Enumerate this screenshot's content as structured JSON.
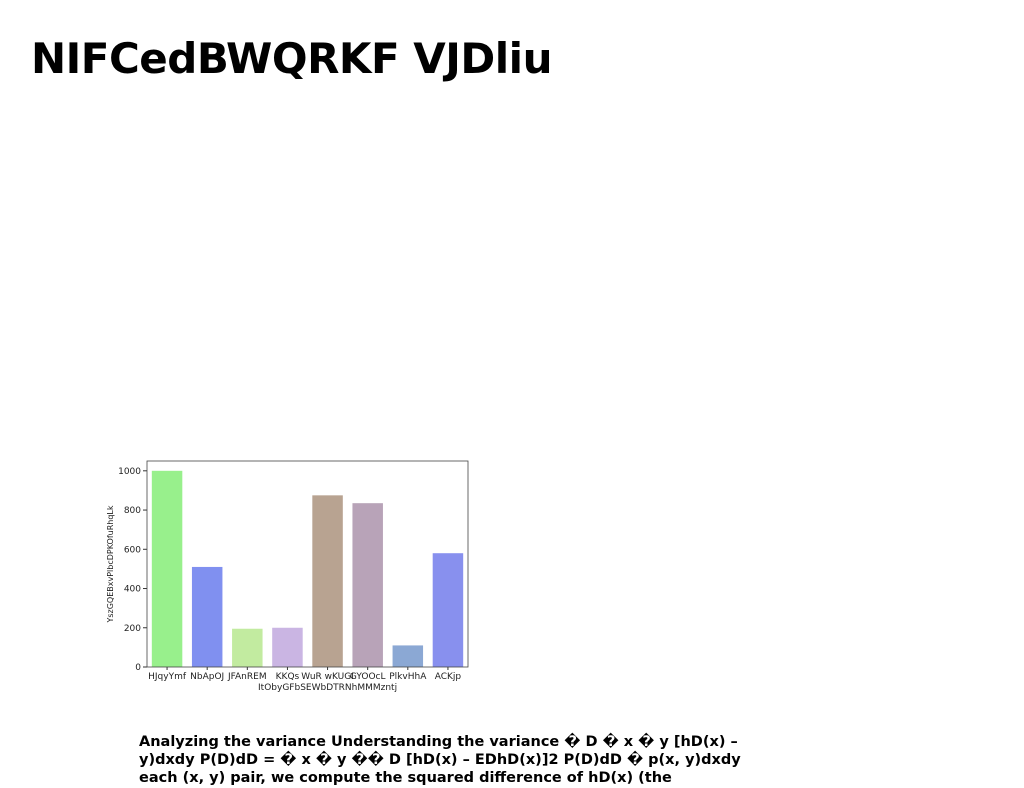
{
  "title": "NIFCedBWQRKF VJDliu",
  "chart_data": {
    "type": "bar",
    "ylabel": "YszGQEBxvPlbcDPKOfuRhqLk",
    "categories": [
      "HJqyYmf",
      "NbApOJ",
      "JFAnREM",
      "KKQs",
      "WuR wKUGI\nItObyGFbSEWbDTRNhMMMzntj",
      "GYOOcL",
      "PlkvHhA",
      "ACKjp"
    ],
    "values": [
      1000,
      510,
      195,
      200,
      875,
      835,
      110,
      580
    ],
    "colors": [
      "#98f08c",
      "#8090f0",
      "#c2eba0",
      "#cab5e3",
      "#b8a391",
      "#b8a3b8",
      "#8ba8d4",
      "#8890ee"
    ],
    "ylim": [
      0,
      1050
    ],
    "yticks": [
      0,
      200,
      400,
      600,
      800,
      1000
    ]
  },
  "paragraph": [
    "Analyzing the variance Understanding the variance � D � x � y [hD(x) –",
    "y)dxdy P(D)dD = � x � y �� D [hD(x) – EDhD(x)]2 P(D)dD � p(x, y)dxdy",
    "each (x, y) pair, we compute the squared difference of hD(x) (the"
  ]
}
